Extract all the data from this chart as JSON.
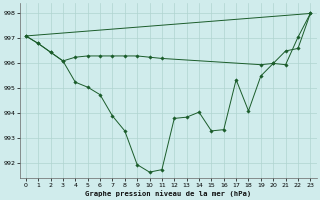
{
  "xlabel": "Graphe pression niveau de la mer (hPa)",
  "ylim": [
    991.4,
    998.4
  ],
  "xlim": [
    -0.5,
    23.5
  ],
  "yticks": [
    992,
    993,
    994,
    995,
    996,
    997,
    998
  ],
  "xticks": [
    0,
    1,
    2,
    3,
    4,
    5,
    6,
    7,
    8,
    9,
    10,
    11,
    12,
    13,
    14,
    15,
    16,
    17,
    18,
    19,
    20,
    21,
    22,
    23
  ],
  "bg_color": "#d0ecec",
  "grid_color": "#b0d4d0",
  "line_color": "#1a5c2a",
  "series_top": {
    "x": [
      0,
      23
    ],
    "y": [
      997.1,
      998.0
    ]
  },
  "series_mid": {
    "x": [
      0,
      1,
      2,
      3,
      4,
      5,
      6,
      7,
      8,
      9,
      10,
      11,
      19,
      20,
      21,
      22,
      23
    ],
    "y": [
      997.1,
      996.8,
      996.45,
      996.1,
      996.25,
      996.3,
      996.3,
      996.3,
      996.3,
      996.3,
      996.25,
      996.2,
      995.95,
      996.0,
      996.5,
      996.6,
      998.0
    ]
  },
  "series_main": {
    "x": [
      0,
      1,
      2,
      3,
      4,
      5,
      6,
      7,
      8,
      9,
      10,
      11,
      12,
      13,
      14,
      15,
      16,
      17,
      18,
      19,
      20,
      21,
      22,
      23
    ],
    "y": [
      997.1,
      996.8,
      996.45,
      996.1,
      995.25,
      995.05,
      994.75,
      993.9,
      993.3,
      991.95,
      991.65,
      991.75,
      993.8,
      993.85,
      994.05,
      993.3,
      993.35,
      995.35,
      994.1,
      995.5,
      996.0,
      995.95,
      997.05,
      998.0
    ]
  }
}
